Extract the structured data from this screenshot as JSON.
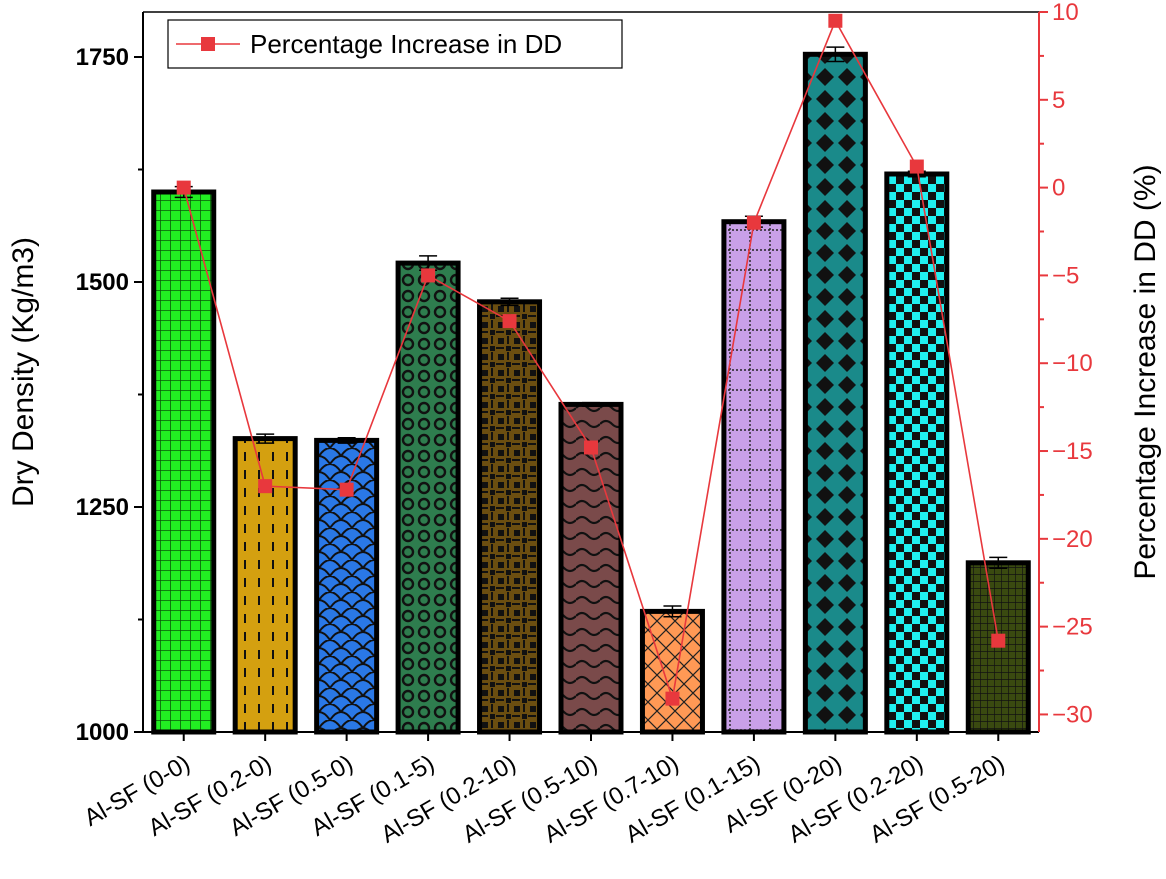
{
  "chart_data": {
    "type": "bar",
    "categories": [
      "Al-SF (0-0)",
      "Al-SF (0.2-0)",
      "Al-SF (0.5-0)",
      "Al-SF (0.1-5)",
      "Al-SF (0.2-10)",
      "Al-SF (0.5-10)",
      "Al-SF (0.7-10)",
      "Al-SF (0.1-15)",
      "Al-SF (0-20)",
      "Al-SF (0.2-20)",
      "Al-SF (0.5-20)"
    ],
    "series": [
      {
        "name": "Dry Density",
        "axis": "left",
        "type": "bar",
        "values": [
          1600,
          1326,
          1324,
          1521,
          1478,
          1364,
          1134,
          1567,
          1753,
          1620,
          1188
        ],
        "errors": [
          6,
          5,
          3,
          8,
          4,
          2,
          6,
          6,
          8,
          3,
          6
        ],
        "fill_colors": [
          "#22ee22",
          "#d4a010",
          "#2a78e6",
          "#2e7d4e",
          "#6b4e10",
          "#7a4a4a",
          "#ff9955",
          "#c9a0e8",
          "#1a8a8a",
          "#20f0f0",
          "#3a4a10"
        ],
        "patterns": [
          "grid",
          "dashes",
          "scales",
          "rings",
          "weave",
          "waves",
          "crosshatch",
          "dotted-grid",
          "diamonds",
          "checker",
          "fine-grid"
        ]
      },
      {
        "name": "Percentage Increase in DD",
        "axis": "right",
        "type": "line",
        "values": [
          0,
          -17,
          -17.2,
          -5,
          -7.6,
          -14.8,
          -29.1,
          -2,
          9.5,
          1.2,
          -25.8
        ]
      }
    ],
    "xlabel": "",
    "ylabel": "Dry Density (Kg/m3)",
    "y2label": "Percentage Increase in DD (%)",
    "ylim": [
      1000,
      1800
    ],
    "y2lim": [
      -31,
      10
    ],
    "yticks": [
      "1000",
      "1250",
      "1500",
      "1750"
    ],
    "y2ticks": [
      "10",
      "5",
      "0",
      "−5",
      "−10",
      "−15",
      "−20",
      "−25",
      "−30"
    ],
    "y2tick_values": [
      10,
      5,
      0,
      -5,
      -10,
      -15,
      -20,
      -25,
      -30
    ],
    "ytick_values": [
      1000,
      1250,
      1500,
      1750
    ],
    "legend": {
      "label": "Percentage Increase in DD",
      "position": "top-left"
    },
    "colors": {
      "line": "#e8383d",
      "right_axis": "#e8383d",
      "bar_border": "#000000"
    },
    "grid": false
  }
}
